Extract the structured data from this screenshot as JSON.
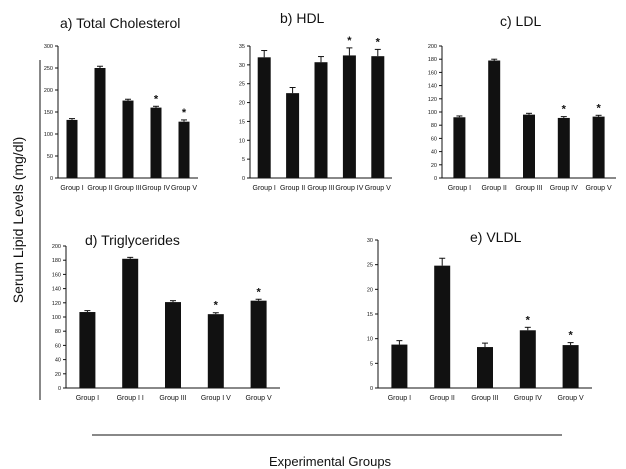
{
  "figure": {
    "ylabel": "Serum Lipid Levels (mg/dl)",
    "xlabel": "Experimental Groups"
  },
  "chart_data": [
    {
      "type": "bar",
      "title": "a) Total Cholesterol",
      "categories": [
        "Group I",
        "Group II",
        "Group III",
        "Group IV",
        "Group V"
      ],
      "values": [
        132,
        250,
        176,
        160,
        128
      ],
      "errors": [
        3,
        4,
        3,
        3,
        4
      ],
      "significant": [
        false,
        false,
        false,
        true,
        true
      ],
      "ylim": [
        0,
        300
      ],
      "yticks": [
        0,
        50,
        100,
        150,
        200,
        250,
        300
      ]
    },
    {
      "type": "bar",
      "title": "b) HDL",
      "categories": [
        "Group I",
        "Group II",
        "Group III",
        "Group IV",
        "Group V"
      ],
      "values": [
        32,
        22.5,
        30.7,
        32.5,
        32.3
      ],
      "errors": [
        1.8,
        1.5,
        1.5,
        2,
        1.8
      ],
      "significant": [
        false,
        false,
        false,
        true,
        true
      ],
      "ylim": [
        0,
        35
      ],
      "yticks": [
        0,
        5,
        10,
        15,
        20,
        25,
        30,
        35
      ]
    },
    {
      "type": "bar",
      "title": "c) LDL",
      "categories": [
        "Group I",
        "Group II",
        "Group III",
        "Group IV",
        "Group V"
      ],
      "values": [
        92,
        178,
        96,
        91,
        93
      ],
      "errors": [
        2,
        2,
        2,
        2,
        2
      ],
      "significant": [
        false,
        false,
        false,
        true,
        true
      ],
      "ylim": [
        0,
        200
      ],
      "yticks": [
        0,
        20,
        40,
        60,
        80,
        100,
        120,
        140,
        160,
        180,
        200
      ]
    },
    {
      "type": "bar",
      "title": "d) Triglycerides",
      "categories": [
        "Group I",
        "Group I I",
        "Group III",
        "Group I V",
        "Group V"
      ],
      "values": [
        107,
        182,
        121,
        104,
        123
      ],
      "errors": [
        2,
        2,
        2,
        2,
        2
      ],
      "significant": [
        false,
        false,
        false,
        true,
        true
      ],
      "ylim": [
        0,
        200
      ],
      "yticks": [
        0,
        20,
        40,
        60,
        80,
        100,
        120,
        140,
        160,
        180,
        200
      ]
    },
    {
      "type": "bar",
      "title": "e) VLDL",
      "categories": [
        "Group I",
        "Group II",
        "Group III",
        "Group IV",
        "Group V"
      ],
      "values": [
        8.8,
        24.8,
        8.3,
        11.7,
        8.7
      ],
      "errors": [
        0.8,
        1.5,
        0.8,
        0.6,
        0.5
      ],
      "significant": [
        false,
        false,
        false,
        true,
        true
      ],
      "ylim": [
        0,
        30
      ],
      "yticks": [
        0,
        5,
        10,
        15,
        20,
        25,
        30
      ]
    }
  ],
  "significance_marker": "*"
}
